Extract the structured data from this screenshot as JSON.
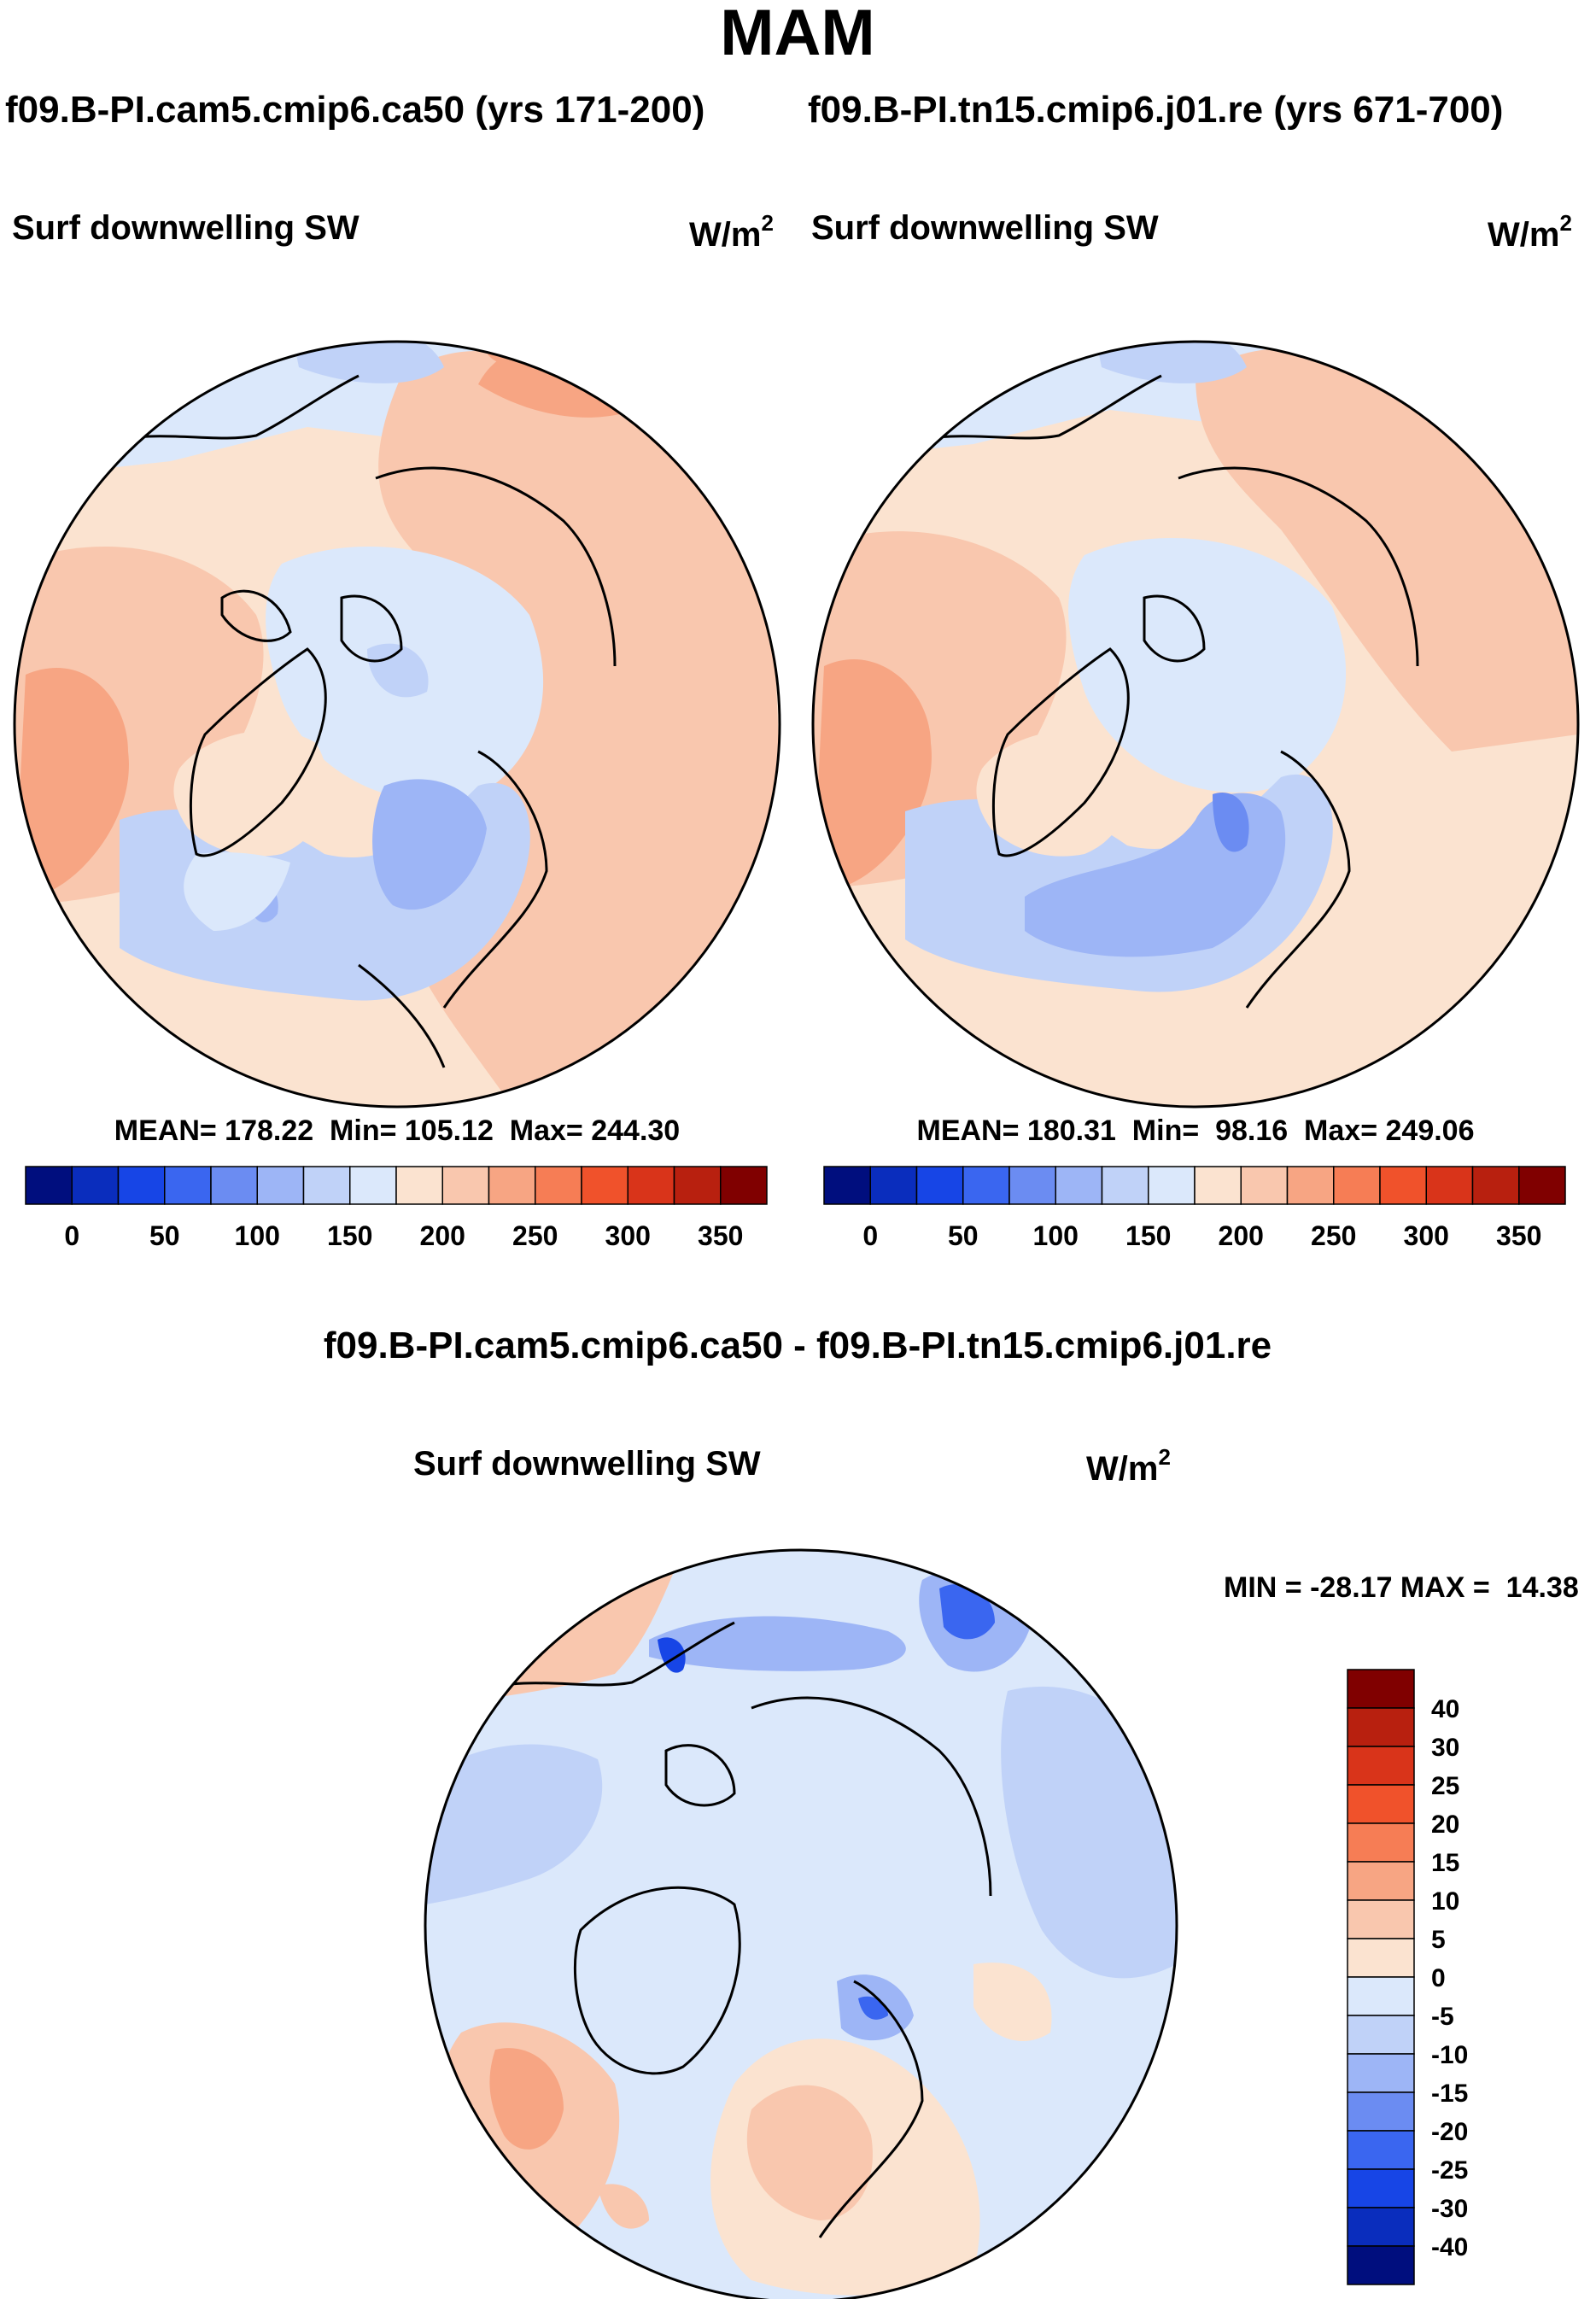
{
  "chart_data": {
    "type": "heatmap",
    "title": "MAM",
    "subtitle_left": "f09.B-PI.cam5.cmip6.ca50 (yrs 171-200)",
    "subtitle_right": "f09.B-PI.tn15.cmip6.j01.re (yrs 671-700)",
    "diff_title": "f09.B-PI.cam5.cmip6.ca50 - f09.B-PI.tn15.cmip6.j01.re",
    "panels": [
      {
        "id": "ca50",
        "variable": "Surf downwelling SW",
        "units_base": "W/m",
        "units_exp": "2",
        "stats": "MEAN= 178.22  Min= 105.12  Max= 244.30",
        "mean": 178.22,
        "min": 105.12,
        "max": 244.3,
        "colorbar_ticks": [
          "0",
          "50",
          "100",
          "150",
          "200",
          "250",
          "300",
          "350"
        ],
        "colorbar_colors": [
          "#000e7e",
          "#0a2dbd",
          "#1745e6",
          "#3a66f0",
          "#6b8cf2",
          "#9db5f6",
          "#c0d2f8",
          "#dbe8fb",
          "#fbe3d0",
          "#f9c7ae",
          "#f7a583",
          "#f67d55",
          "#f0522b",
          "#d9341a",
          "#b8200f",
          "#800000"
        ]
      },
      {
        "id": "j01",
        "variable": "Surf downwelling SW",
        "units_base": "W/m",
        "units_exp": "2",
        "stats": "MEAN= 180.31  Min=  98.16  Max= 249.06",
        "mean": 180.31,
        "min": 98.16,
        "max": 249.06,
        "colorbar_ticks": [
          "0",
          "50",
          "100",
          "150",
          "200",
          "250",
          "300",
          "350"
        ],
        "colorbar_colors": [
          "#000e7e",
          "#0a2dbd",
          "#1745e6",
          "#3a66f0",
          "#6b8cf2",
          "#9db5f6",
          "#c0d2f8",
          "#dbe8fb",
          "#fbe3d0",
          "#f9c7ae",
          "#f7a583",
          "#f67d55",
          "#f0522b",
          "#d9341a",
          "#b8200f",
          "#800000"
        ]
      },
      {
        "id": "diff",
        "variable": "Surf downwelling SW",
        "units_base": "W/m",
        "units_exp": "2",
        "stats": "MIN = -28.17 MAX =  14.38",
        "min": -28.17,
        "max": 14.38,
        "colorbar_ticks": [
          "40",
          "30",
          "25",
          "20",
          "15",
          "10",
          "5",
          "0",
          "-5",
          "-10",
          "-15",
          "-20",
          "-25",
          "-30",
          "-40"
        ],
        "colorbar_colors": [
          "#800000",
          "#b8200f",
          "#d9341a",
          "#f0522b",
          "#f67d55",
          "#f7a583",
          "#f9c7ae",
          "#fbe3d0",
          "#dbe8fb",
          "#c0d2f8",
          "#9db5f6",
          "#6b8cf2",
          "#3a66f0",
          "#1745e6",
          "#0a2dbd",
          "#000e7e"
        ]
      }
    ]
  }
}
